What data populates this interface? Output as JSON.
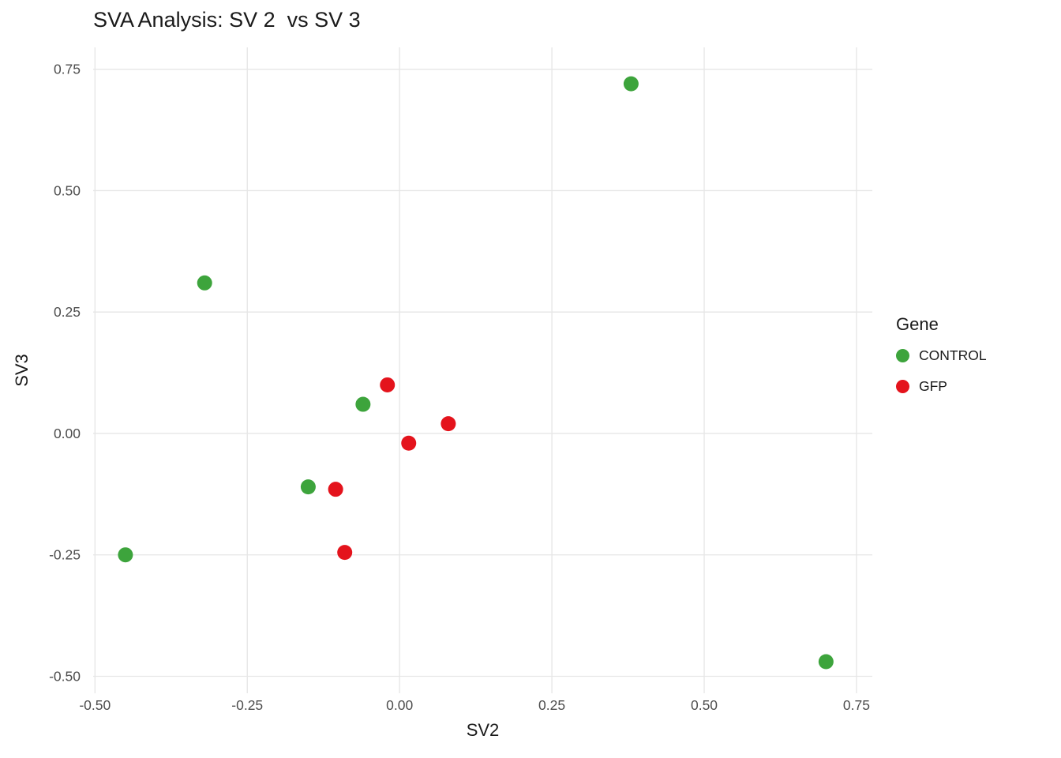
{
  "title": "SVA Analysis: SV 2  vs SV 3",
  "chart_data": {
    "type": "scatter",
    "title": "SVA Analysis: SV 2  vs SV 3",
    "xlabel": "SV2",
    "ylabel": "SV3",
    "xlim": [
      -0.503,
      0.776
    ],
    "ylim": [
      -0.535,
      0.795
    ],
    "x_ticks": [
      -0.5,
      -0.25,
      0.0,
      0.25,
      0.5,
      0.75
    ],
    "y_ticks": [
      -0.5,
      -0.25,
      0.0,
      0.25,
      0.5,
      0.75
    ],
    "x_tick_labels": [
      "-0.50",
      "-0.25",
      "0.00",
      "0.25",
      "0.50",
      "0.75"
    ],
    "y_tick_labels": [
      "-0.50",
      "-0.25",
      "0.00",
      "0.25",
      "0.50",
      "0.75"
    ],
    "grid": true,
    "grid_color": "#e6e6e6",
    "legend_title": "Gene",
    "legend_position": "right",
    "point_radius": 9.5,
    "series": [
      {
        "name": "CONTROL",
        "color": "#3da43c",
        "points": [
          [
            0.38,
            0.72
          ],
          [
            -0.32,
            0.31
          ],
          [
            -0.06,
            0.06
          ],
          [
            -0.15,
            -0.11
          ],
          [
            -0.45,
            -0.25
          ],
          [
            0.7,
            -0.47
          ]
        ]
      },
      {
        "name": "GFP",
        "color": "#e4131c",
        "points": [
          [
            -0.02,
            0.1
          ],
          [
            0.08,
            0.02
          ],
          [
            0.015,
            -0.02
          ],
          [
            -0.105,
            -0.115
          ],
          [
            -0.09,
            -0.245
          ]
        ]
      }
    ]
  },
  "legend": {
    "title": "Gene",
    "items": [
      {
        "label": "CONTROL",
        "color": "#3da43c"
      },
      {
        "label": "GFP",
        "color": "#e4131c"
      }
    ]
  }
}
